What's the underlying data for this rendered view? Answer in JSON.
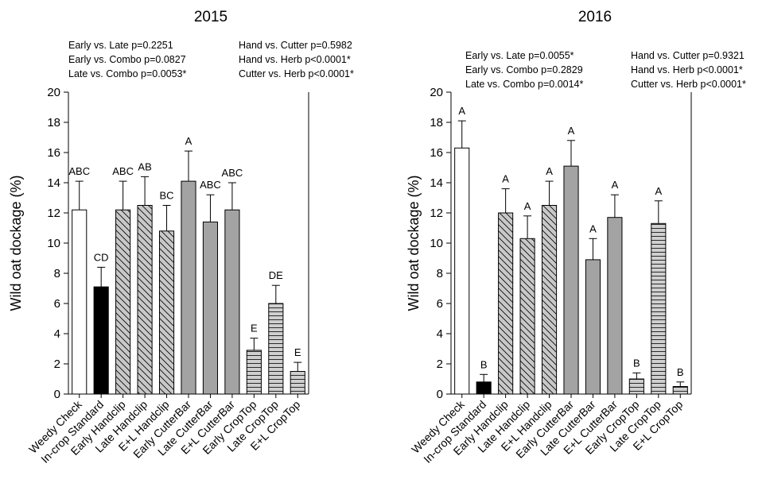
{
  "chart_data": [
    {
      "type": "bar",
      "title": "2015",
      "ylabel": "Wild oat dockage (%)",
      "xlabel": "",
      "ylim": [
        0,
        20
      ],
      "yticks": [
        0,
        2,
        4,
        6,
        8,
        10,
        12,
        14,
        16,
        18,
        20
      ],
      "grid": false,
      "categories": [
        "Weedy Check",
        "In-crop Standard",
        "Early Handclip",
        "Late Handclip",
        "E+L Handclip",
        "Early CutterBar",
        "Late CutterBar",
        "E+L CutterBar",
        "Early CropTop",
        "Late CropTop",
        "E+L CropTop"
      ],
      "values": [
        12.2,
        7.1,
        12.2,
        12.5,
        10.8,
        14.1,
        11.4,
        12.2,
        2.9,
        6.0,
        1.5
      ],
      "errors": [
        1.9,
        1.3,
        1.9,
        1.9,
        1.7,
        2.0,
        1.8,
        1.8,
        0.8,
        1.2,
        0.6
      ],
      "letters": [
        "ABC",
        "CD",
        "ABC",
        "AB",
        "BC",
        "A",
        "ABC",
        "ABC",
        "E",
        "DE",
        "E"
      ],
      "contrasts_left": [
        "Early vs. Late p=0.2251",
        "Early vs. Combo p=0.0827",
        "Late vs. Combo p=0.0053*"
      ],
      "contrasts_right": [
        "Hand vs. Cutter p=0.5982",
        "Hand vs. Herb p<0.0001*",
        "Cutter vs. Herb p<0.0001*"
      ]
    },
    {
      "type": "bar",
      "title": "2016",
      "ylabel": "Wild oat dockage (%)",
      "xlabel": "",
      "ylim": [
        0,
        20
      ],
      "yticks": [
        0,
        2,
        4,
        6,
        8,
        10,
        12,
        14,
        16,
        18,
        20
      ],
      "grid": false,
      "categories": [
        "Weedy Check",
        "In-crop Standard",
        "Early Handclip",
        "Late Handclip",
        "E+L Handclip",
        "Early CutterBar",
        "Late CutterBar",
        "E+L CutterBar",
        "Early CropTop",
        "Late CropTop",
        "E+L CropTop"
      ],
      "values": [
        16.3,
        0.8,
        12.0,
        10.3,
        12.5,
        15.1,
        8.9,
        11.7,
        1.0,
        11.3,
        0.5
      ],
      "errors": [
        1.8,
        0.5,
        1.6,
        1.5,
        1.6,
        1.7,
        1.4,
        1.5,
        0.4,
        1.5,
        0.3
      ],
      "letters": [
        "A",
        "B",
        "A",
        "A",
        "A",
        "A",
        "A",
        "A",
        "B",
        "A",
        "B"
      ],
      "contrasts_left": [
        "Early vs. Late p=0.0055*",
        "Early vs. Combo p=0.2829",
        "Late vs. Combo p=0.0014*"
      ],
      "contrasts_right": [
        "Hand vs. Cutter p=0.9321",
        "Hand vs. Herb p<0.0001*",
        "Cutter vs. Herb p<0.0001*"
      ]
    }
  ],
  "colors": {
    "weedy_check": "#ffffff",
    "in_crop_standard": "#000000",
    "handclip": "#c8c8c8",
    "cutterbar": "#a3a3a3",
    "croptop": "#cfcfcf",
    "outline": "#000000"
  },
  "patterns": [
    "none",
    "none",
    "diagonal-back",
    "diagonal-back",
    "diagonal-back",
    "none",
    "none",
    "none",
    "horizontal",
    "horizontal",
    "horizontal"
  ]
}
